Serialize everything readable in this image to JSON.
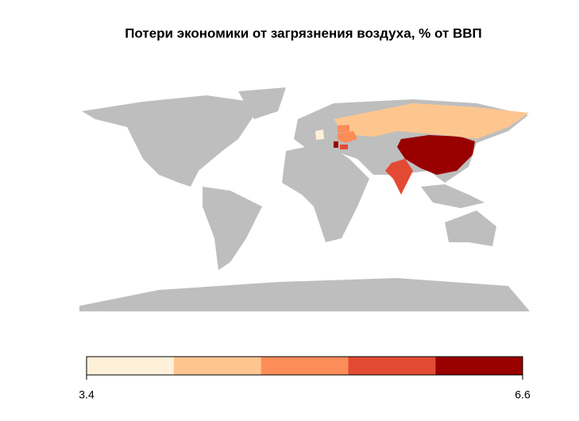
{
  "chart_data": {
    "type": "choropleth",
    "title": "Потери экономики от загрязнения воздуха, % от ВВП",
    "values": [
      6.6,
      5.7,
      4.2,
      5.0,
      4.9,
      3.5,
      6.3,
      5.5
    ],
    "colorbar": {
      "lim": [
        3.4,
        6.6
      ],
      "ticks": [
        3.4,
        6.6
      ],
      "colors": [
        "#FEF0D9",
        "#FDC68F",
        "#FC8D59",
        "#E34A33",
        "#990000"
      ]
    },
    "land_color": "#BEBEBE"
  }
}
